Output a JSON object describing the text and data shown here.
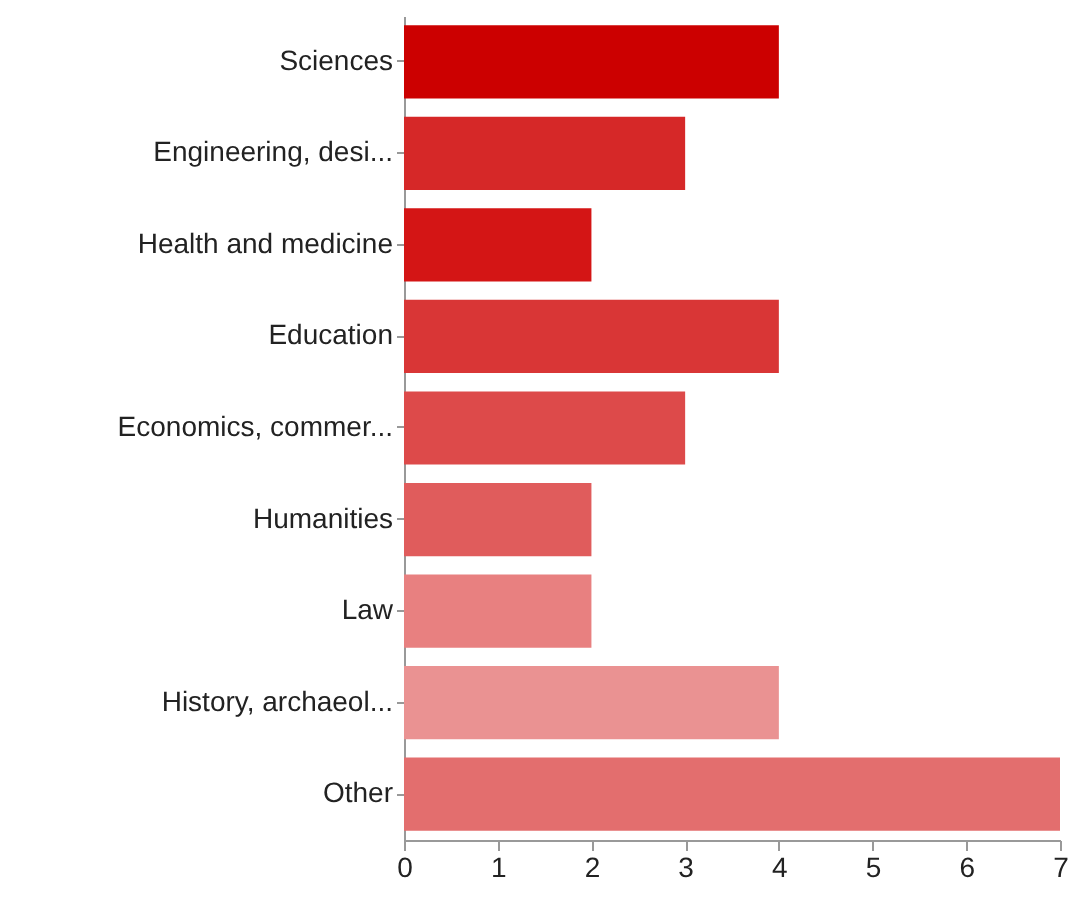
{
  "chart_data": {
    "type": "bar",
    "orientation": "horizontal",
    "categories": [
      "Sciences",
      "Engineering, desi...",
      "Health and medicine",
      "Education",
      "Economics, commer...",
      "Humanities",
      "Law",
      "History, archaeol...",
      "Other"
    ],
    "values": [
      4,
      3,
      2,
      4,
      3,
      2,
      2,
      4,
      7
    ],
    "colors": [
      "#cc0000",
      "#d62828",
      "#d41515",
      "#d93636",
      "#dd4a4a",
      "#e05c5c",
      "#e88080",
      "#ea9292",
      "#e36e6e"
    ],
    "xlim": [
      0,
      7
    ],
    "xticks": [
      0,
      1,
      2,
      3,
      4,
      5,
      6,
      7
    ],
    "grid": false
  }
}
